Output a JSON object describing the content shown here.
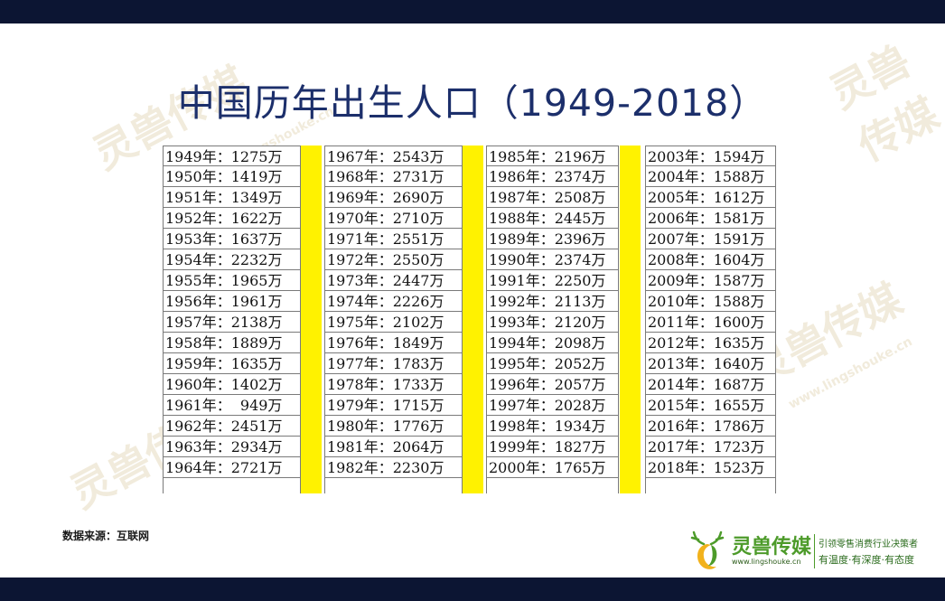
{
  "title": "中国历年出生人口（1949-2018）",
  "source": "数据来源：互联网",
  "brand": {
    "name": "灵兽传媒",
    "url": "www.lingshouke.cn",
    "slogan_line1": "引领零售消费行业决策者",
    "slogan_line2": "有温度·有深度·有态度"
  },
  "watermark": {
    "text": "灵兽传媒",
    "url": "www.lingshouke.cn"
  },
  "table": {
    "columns": [
      [
        "1949年：1275万",
        "1950年：1419万",
        "1951年：1349万",
        "1952年：1622万",
        "1953年：1637万",
        "1954年：2232万",
        "1955年：1965万",
        "1956年：1961万",
        "1957年：2138万",
        "1958年：1889万",
        "1959年：1635万",
        "1960年：1402万",
        "1961年：  949万",
        "1962年：2451万",
        "1963年：2934万",
        "1964年：2721万"
      ],
      [
        "1967年：2543万",
        "1968年：2731万",
        "1969年：2690万",
        "1970年：2710万",
        "1971年：2551万",
        "1972年：2550万",
        "1973年：2447万",
        "1974年：2226万",
        "1975年：2102万",
        "1976年：1849万",
        "1977年：1783万",
        "1978年：1733万",
        "1979年：1715万",
        "1980年：1776万",
        "1981年：2064万",
        "1982年：2230万"
      ],
      [
        "1985年：2196万",
        "1986年：2374万",
        "1987年：2508万",
        "1988年：2445万",
        "1989年：2396万",
        "1990年：2374万",
        "1991年：2250万",
        "1992年：2113万",
        "1993年：2120万",
        "1994年：2098万",
        "1995年：2052万",
        "1996年：2057万",
        "1997年：2028万",
        "1998年：1934万",
        "1999年：1827万",
        "2000年：1765万"
      ],
      [
        "2003年：1594万",
        "2004年：1588万",
        "2005年：1612万",
        "2006年：1581万",
        "2007年：1591万",
        "2008年：1604万",
        "2009年：1587万",
        "2010年：1588万",
        "2011年：1600万",
        "2012年：1635万",
        "2013年：1640万",
        "2014年：1687万",
        "2015年：1655万",
        "2016年：1786万",
        "2017年：1723万",
        "2018年：1523万"
      ]
    ]
  }
}
